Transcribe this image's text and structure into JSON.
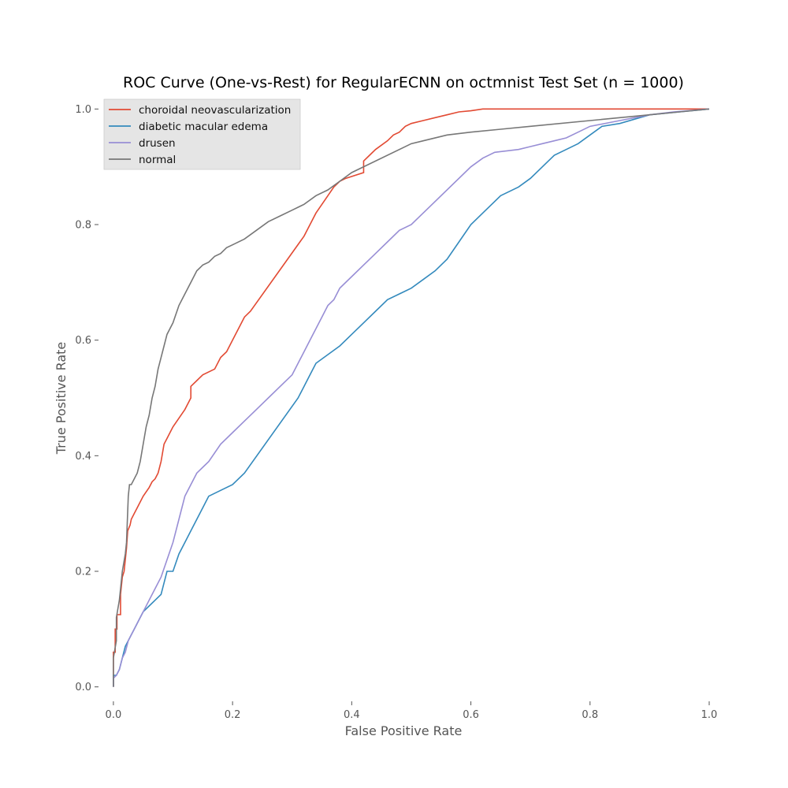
{
  "chart_data": {
    "type": "line",
    "title": "ROC Curve (One-vs-Rest) for RegularECNN on octmnist Test Set (n = 1000)",
    "xlabel": "False Positive Rate",
    "ylabel": "True Positive Rate",
    "xlim": [
      -0.025,
      1.0
    ],
    "ylim": [
      -0.025,
      1.025
    ],
    "xticks": [
      0.0,
      0.2,
      0.4,
      0.6,
      0.8,
      1.0
    ],
    "xtick_labels": [
      "0.0",
      "0.2",
      "0.4",
      "0.6",
      "0.8",
      "1.0"
    ],
    "yticks": [
      0.0,
      0.2,
      0.4,
      0.6,
      0.8,
      1.0
    ],
    "ytick_labels": [
      "0.0",
      "0.2",
      "0.4",
      "0.6",
      "0.8",
      "1.0"
    ],
    "grid": false,
    "legend_position": "top-left",
    "series": [
      {
        "name": "choroidal neovascularization",
        "color": "#E24A33",
        "x": [
          0.0,
          0.0,
          0.003,
          0.003,
          0.006,
          0.006,
          0.012,
          0.012,
          0.015,
          0.018,
          0.02,
          0.022,
          0.024,
          0.028,
          0.03,
          0.035,
          0.04,
          0.05,
          0.06,
          0.065,
          0.07,
          0.075,
          0.08,
          0.085,
          0.09,
          0.095,
          0.1,
          0.11,
          0.12,
          0.13,
          0.13,
          0.14,
          0.15,
          0.17,
          0.18,
          0.19,
          0.2,
          0.21,
          0.22,
          0.23,
          0.32,
          0.33,
          0.34,
          0.35,
          0.36,
          0.37,
          0.38,
          0.39,
          0.42,
          0.42,
          0.43,
          0.44,
          0.46,
          0.47,
          0.48,
          0.49,
          0.5,
          0.52,
          0.54,
          0.56,
          0.58,
          0.6,
          0.62,
          0.65,
          0.7,
          0.8,
          0.93,
          1.0
        ],
        "y": [
          0.0,
          0.06,
          0.06,
          0.1,
          0.1,
          0.125,
          0.125,
          0.16,
          0.19,
          0.2,
          0.22,
          0.24,
          0.27,
          0.28,
          0.29,
          0.3,
          0.31,
          0.33,
          0.345,
          0.355,
          0.36,
          0.37,
          0.39,
          0.42,
          0.43,
          0.44,
          0.45,
          0.465,
          0.48,
          0.5,
          0.52,
          0.53,
          0.54,
          0.55,
          0.57,
          0.58,
          0.6,
          0.62,
          0.64,
          0.65,
          0.78,
          0.8,
          0.82,
          0.835,
          0.85,
          0.865,
          0.875,
          0.88,
          0.89,
          0.91,
          0.92,
          0.93,
          0.945,
          0.955,
          0.96,
          0.97,
          0.975,
          0.98,
          0.985,
          0.99,
          0.995,
          0.997,
          1.0,
          1.0,
          1.0,
          1.0,
          1.0,
          1.0
        ]
      },
      {
        "name": "diabetic macular edema",
        "color": "#348ABD",
        "x": [
          0.0,
          0.0,
          0.005,
          0.01,
          0.015,
          0.02,
          0.025,
          0.03,
          0.035,
          0.04,
          0.045,
          0.05,
          0.06,
          0.07,
          0.08,
          0.085,
          0.09,
          0.1,
          0.11,
          0.12,
          0.13,
          0.14,
          0.15,
          0.16,
          0.18,
          0.2,
          0.22,
          0.31,
          0.32,
          0.33,
          0.34,
          0.36,
          0.38,
          0.4,
          0.42,
          0.44,
          0.46,
          0.48,
          0.5,
          0.52,
          0.54,
          0.56,
          0.58,
          0.6,
          0.62,
          0.65,
          0.68,
          0.7,
          0.72,
          0.74,
          0.76,
          0.78,
          0.8,
          0.82,
          0.85,
          0.9,
          0.95,
          1.0
        ],
        "y": [
          0.0,
          0.02,
          0.02,
          0.03,
          0.05,
          0.07,
          0.08,
          0.09,
          0.1,
          0.11,
          0.12,
          0.13,
          0.14,
          0.15,
          0.16,
          0.18,
          0.2,
          0.2,
          0.23,
          0.25,
          0.27,
          0.29,
          0.31,
          0.33,
          0.34,
          0.35,
          0.37,
          0.5,
          0.52,
          0.54,
          0.56,
          0.575,
          0.59,
          0.61,
          0.63,
          0.65,
          0.67,
          0.68,
          0.69,
          0.705,
          0.72,
          0.74,
          0.77,
          0.8,
          0.82,
          0.85,
          0.865,
          0.88,
          0.9,
          0.92,
          0.93,
          0.94,
          0.955,
          0.97,
          0.975,
          0.99,
          0.995,
          1.0
        ]
      },
      {
        "name": "drusen",
        "color": "#988ED5",
        "x": [
          0.0,
          0.0,
          0.005,
          0.01,
          0.015,
          0.02,
          0.025,
          0.03,
          0.035,
          0.04,
          0.045,
          0.05,
          0.06,
          0.07,
          0.08,
          0.09,
          0.1,
          0.11,
          0.12,
          0.13,
          0.14,
          0.15,
          0.16,
          0.18,
          0.2,
          0.22,
          0.24,
          0.26,
          0.28,
          0.3,
          0.32,
          0.33,
          0.34,
          0.35,
          0.36,
          0.37,
          0.38,
          0.4,
          0.42,
          0.44,
          0.46,
          0.48,
          0.5,
          0.52,
          0.6,
          0.62,
          0.64,
          0.68,
          0.7,
          0.72,
          0.74,
          0.76,
          0.78,
          0.8,
          0.85,
          0.9,
          0.94,
          1.0
        ],
        "y": [
          0.0,
          0.015,
          0.02,
          0.03,
          0.05,
          0.06,
          0.08,
          0.09,
          0.1,
          0.11,
          0.12,
          0.13,
          0.15,
          0.17,
          0.19,
          0.22,
          0.25,
          0.29,
          0.33,
          0.35,
          0.37,
          0.38,
          0.39,
          0.42,
          0.44,
          0.46,
          0.48,
          0.5,
          0.52,
          0.54,
          0.58,
          0.6,
          0.62,
          0.64,
          0.66,
          0.67,
          0.69,
          0.71,
          0.73,
          0.75,
          0.77,
          0.79,
          0.8,
          0.82,
          0.9,
          0.915,
          0.925,
          0.93,
          0.935,
          0.94,
          0.945,
          0.95,
          0.96,
          0.97,
          0.98,
          0.99,
          0.995,
          1.0
        ]
      },
      {
        "name": "normal",
        "color": "#777777",
        "x": [
          0.0,
          0.0,
          0.005,
          0.005,
          0.01,
          0.012,
          0.015,
          0.02,
          0.022,
          0.025,
          0.027,
          0.03,
          0.04,
          0.045,
          0.05,
          0.055,
          0.06,
          0.065,
          0.07,
          0.075,
          0.08,
          0.085,
          0.09,
          0.1,
          0.11,
          0.12,
          0.13,
          0.14,
          0.15,
          0.16,
          0.17,
          0.18,
          0.19,
          0.2,
          0.22,
          0.24,
          0.26,
          0.28,
          0.3,
          0.32,
          0.34,
          0.36,
          0.38,
          0.4,
          0.5,
          0.52,
          0.56,
          0.6,
          0.65,
          0.7,
          0.8,
          0.85,
          0.9,
          0.95,
          1.0
        ],
        "y": [
          0.0,
          0.05,
          0.08,
          0.12,
          0.15,
          0.17,
          0.2,
          0.23,
          0.25,
          0.33,
          0.35,
          0.35,
          0.37,
          0.39,
          0.42,
          0.45,
          0.47,
          0.5,
          0.52,
          0.55,
          0.57,
          0.59,
          0.61,
          0.63,
          0.66,
          0.68,
          0.7,
          0.72,
          0.73,
          0.735,
          0.745,
          0.75,
          0.76,
          0.765,
          0.775,
          0.79,
          0.805,
          0.815,
          0.825,
          0.835,
          0.85,
          0.86,
          0.875,
          0.89,
          0.94,
          0.945,
          0.955,
          0.96,
          0.965,
          0.97,
          0.98,
          0.985,
          0.99,
          0.995,
          1.0
        ]
      }
    ]
  }
}
